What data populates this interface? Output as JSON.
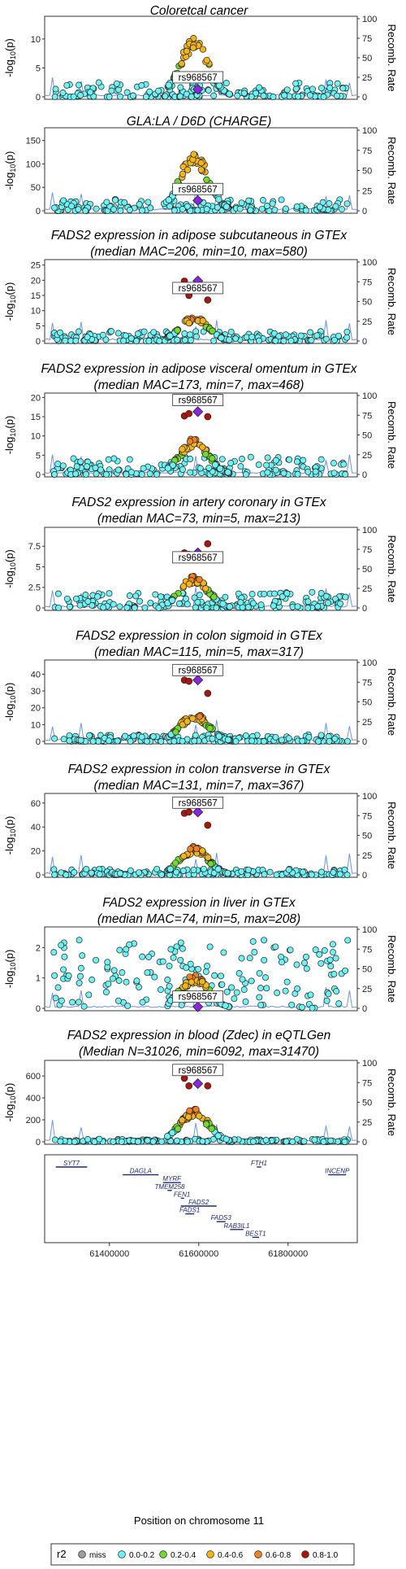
{
  "lead_snp": "rs968567",
  "r2_colors": {
    "miss": "#9e9e9e",
    "0.0-0.2": "#6ff2f4",
    "0.2-0.4": "#73d930",
    "0.4-0.6": "#f2b51c",
    "0.6-0.8": "#f28122",
    "0.8-1.0": "#a8170d",
    "lead": "#8b25e0",
    "recomb": "#6d95e8"
  },
  "ylabel": "-log10(p)",
  "ylabel_prefix": "-log",
  "ylabel_sub": "10",
  "ylabel_suffix": "(p)",
  "ylabel_right": "Recomb. Rate",
  "chart_data": [
    {
      "type": "scatter",
      "title": "Coloretcal cancer",
      "subtitle": "",
      "yticks": [
        0,
        5,
        10
      ],
      "ylim": [
        0,
        13.5
      ],
      "lead_y": 1.3,
      "lead_label_y": 3.1,
      "peak": 10.4,
      "bgmax": 2.5,
      "red_ys": [],
      "pattern": "gwas1"
    },
    {
      "type": "scatter",
      "title": "GLA:LA / D6D (CHARGE)",
      "subtitle": "",
      "yticks": [
        0,
        50,
        100,
        150
      ],
      "ylim": [
        0,
        172
      ],
      "lead_y": 22,
      "lead_label_y": 43,
      "peak": 128,
      "bgmax": 26,
      "red_ys": [],
      "pattern": "gwas2"
    },
    {
      "type": "scatter",
      "title": "FADS2 expression in adipose subcutaneous in GTEx",
      "subtitle": "(median MAC=206, min=10, max=580)",
      "yticks": [
        0,
        5,
        10,
        15,
        20,
        25
      ],
      "ylim": [
        0,
        26
      ],
      "lead_y": 19.8,
      "lead_label_y": 16.9,
      "peak": 8.2,
      "bgmax": 3.2,
      "red_ys": [
        19.7,
        15,
        13.5
      ],
      "pattern": "eqtl"
    },
    {
      "type": "scatter",
      "title": "FADS2 expression in adipose visceral omentum in GTEx",
      "subtitle": "(median MAC=173, min=7, max=468)",
      "yticks": [
        0,
        5,
        10,
        15,
        20
      ],
      "ylim": [
        0,
        20.5
      ],
      "lead_y": 16.3,
      "lead_label_y": 18.9,
      "peak": 9.5,
      "bgmax": 4.5,
      "red_ys": [
        15.2,
        15.8,
        15.0
      ],
      "pattern": "eqtl"
    },
    {
      "type": "scatter",
      "title": "FADS2 expression in artery coronary in GTEx",
      "subtitle": "(median MAC=73, min=5, max=213)",
      "yticks": [
        0,
        2.5,
        5,
        7.5
      ],
      "ylim": [
        0,
        9.5
      ],
      "lead_y": 6.7,
      "lead_label_y": 5.95,
      "peak": 3.9,
      "bgmax": 1.9,
      "red_ys": [
        6.7,
        6.5,
        7.8
      ],
      "pattern": "eqtl"
    },
    {
      "type": "scatter",
      "title": "FADS2 expression in colon sigmoid in GTEx",
      "subtitle": "(median MAC=115, min=5, max=317)",
      "yticks": [
        0,
        10,
        20,
        30,
        40
      ],
      "ylim": [
        0,
        47
      ],
      "lead_y": 36.5,
      "lead_label_y": 41.5,
      "peak": 17,
      "bgmax": 4,
      "red_ys": [
        36.5,
        35.8,
        28.6
      ],
      "pattern": "eqtl"
    },
    {
      "type": "scatter",
      "title": "FADS2 expression in colon transverse in GTEx",
      "subtitle": "(median MAC=131, min=7, max=367)",
      "yticks": [
        0,
        20,
        40,
        60
      ],
      "ylim": [
        0,
        66
      ],
      "lead_y": 52.5,
      "lead_label_y": 59,
      "peak": 24,
      "bgmax": 5,
      "red_ys": [
        51.5,
        52.5,
        41.5
      ],
      "pattern": "eqtl"
    },
    {
      "type": "scatter",
      "title": "FADS2 expression in liver in GTEx",
      "subtitle": "(median MAC=74, min=5, max=208)",
      "yticks": [
        0,
        1,
        2
      ],
      "ylim": [
        0,
        2.6
      ],
      "lead_y": 0.05,
      "lead_label_y": 0.33,
      "peak": 1.1,
      "bgmax": 2.25,
      "red_ys": [],
      "pattern": "liver"
    },
    {
      "type": "scatter",
      "title": "FADS2 expression in blood (Zdec) in eQTLGen",
      "subtitle": "(Median N=31026, min=6092, max=31470)",
      "yticks": [
        0,
        200,
        400,
        600
      ],
      "ylim": [
        0,
        720
      ],
      "lead_y": 530,
      "lead_label_y": 640,
      "peak": 300,
      "bgmax": 25,
      "red_ys": [
        580,
        510,
        510
      ],
      "pattern": "eqtl"
    }
  ],
  "recomb_ticks": [
    0,
    25,
    50,
    75,
    100
  ],
  "xaxis": {
    "label": "Position on chromosome 11",
    "ticks": [
      61400000,
      61600000,
      61800000
    ],
    "tick_labels": [
      "61400000",
      "61600000",
      "61800000"
    ],
    "range": [
      61255000,
      61955000
    ]
  },
  "genes": [
    {
      "name": "SYT7",
      "start": 61280000,
      "end": 61350000,
      "row": 0
    },
    {
      "name": "FTH1",
      "start": 61730000,
      "end": 61740000,
      "row": 0
    },
    {
      "name": "INCENP",
      "start": 61890000,
      "end": 61930000,
      "row": 1
    },
    {
      "name": "DAGLA",
      "start": 61430000,
      "end": 61510000,
      "row": 1
    },
    {
      "name": "MYRF",
      "start": 61520000,
      "end": 61560000,
      "row": 2
    },
    {
      "name": "TMEM258",
      "start": 61530000,
      "end": 61540000,
      "row": 3
    },
    {
      "name": "FEN1",
      "start": 61560000,
      "end": 61565000,
      "row": 4
    },
    {
      "name": "FADS2",
      "start": 61560000,
      "end": 61640000,
      "row": 5
    },
    {
      "name": "FADS1",
      "start": 61570000,
      "end": 61590000,
      "row": 6
    },
    {
      "name": "FADS3",
      "start": 61640000,
      "end": 61660000,
      "row": 7
    },
    {
      "name": "RAB3IL1",
      "start": 61670000,
      "end": 61700000,
      "row": 8
    },
    {
      "name": "BEST1",
      "start": 61720000,
      "end": 61735000,
      "row": 9
    }
  ],
  "legend": {
    "title": "r2",
    "items": [
      {
        "key": "miss",
        "label": "miss"
      },
      {
        "key": "0.0-0.2",
        "label": "0.0-0.2"
      },
      {
        "key": "0.2-0.4",
        "label": "0.2-0.4"
      },
      {
        "key": "0.4-0.6",
        "label": "0.4-0.6"
      },
      {
        "key": "0.6-0.8",
        "label": "0.6-0.8"
      },
      {
        "key": "0.8-1.0",
        "label": "0.8-1.0"
      }
    ]
  }
}
